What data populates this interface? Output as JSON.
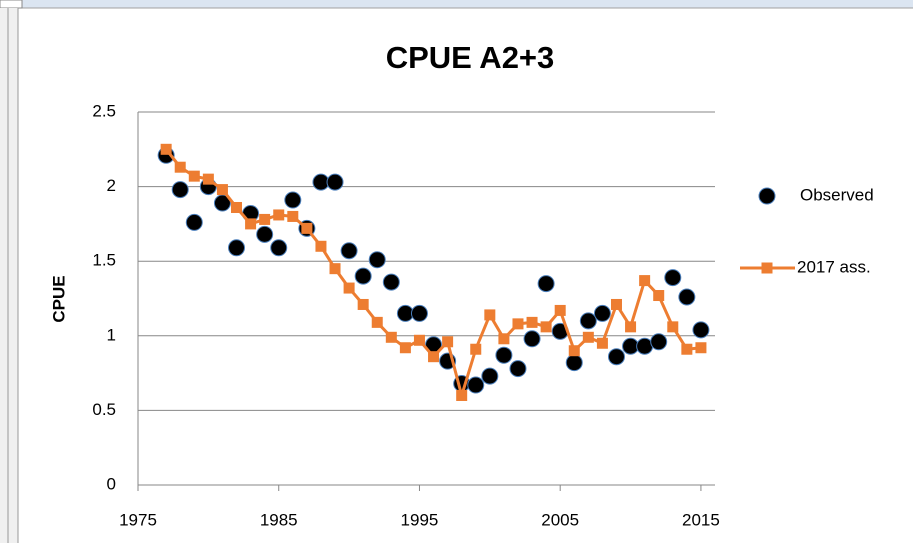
{
  "chart_data": {
    "type": "scatter",
    "title": "CPUE A2+3",
    "ylabel": "CPUE",
    "xlim": [
      1975,
      2016
    ],
    "xticks": [
      1975,
      1985,
      1995,
      2005,
      2015
    ],
    "ylim": [
      0,
      2.5
    ],
    "yticks": [
      0,
      0.5,
      1,
      1.5,
      2,
      2.5
    ],
    "grid": true,
    "legend": "right",
    "x": [
      1977,
      1978,
      1979,
      1980,
      1981,
      1982,
      1983,
      1984,
      1985,
      1986,
      1987,
      1988,
      1989,
      1990,
      1991,
      1992,
      1993,
      1994,
      1995,
      1996,
      1997,
      1998,
      1999,
      2000,
      2001,
      2002,
      2003,
      2004,
      2005,
      2006,
      2007,
      2008,
      2009,
      2010,
      2011,
      2012,
      2013,
      2014,
      2015
    ],
    "series": [
      {
        "name": "Observed",
        "mode": "markers",
        "color": "#000000",
        "edgecolor": "#4a7ebb",
        "values": [
          2.21,
          1.98,
          1.76,
          2.0,
          1.89,
          1.59,
          1.82,
          1.68,
          1.59,
          1.91,
          1.72,
          2.03,
          2.03,
          1.57,
          1.4,
          1.51,
          1.36,
          1.15,
          1.15,
          0.94,
          0.83,
          0.68,
          0.67,
          0.73,
          0.87,
          0.78,
          0.98,
          1.35,
          1.03,
          0.82,
          1.1,
          1.15,
          0.86,
          0.93,
          0.93,
          0.96,
          1.39,
          1.26,
          1.04
        ]
      },
      {
        "name": "2017 ass.",
        "mode": "lines+markers",
        "color": "#ed7d31",
        "values": [
          2.25,
          2.13,
          2.07,
          2.05,
          1.98,
          1.86,
          1.75,
          1.78,
          1.81,
          1.8,
          1.72,
          1.6,
          1.45,
          1.32,
          1.21,
          1.09,
          0.99,
          0.92,
          0.97,
          0.86,
          0.96,
          0.6,
          0.91,
          1.14,
          0.98,
          1.08,
          1.09,
          1.06,
          1.17,
          0.9,
          0.99,
          0.95,
          1.21,
          1.06,
          1.37,
          1.27,
          1.06,
          0.91,
          0.92
        ]
      }
    ]
  }
}
